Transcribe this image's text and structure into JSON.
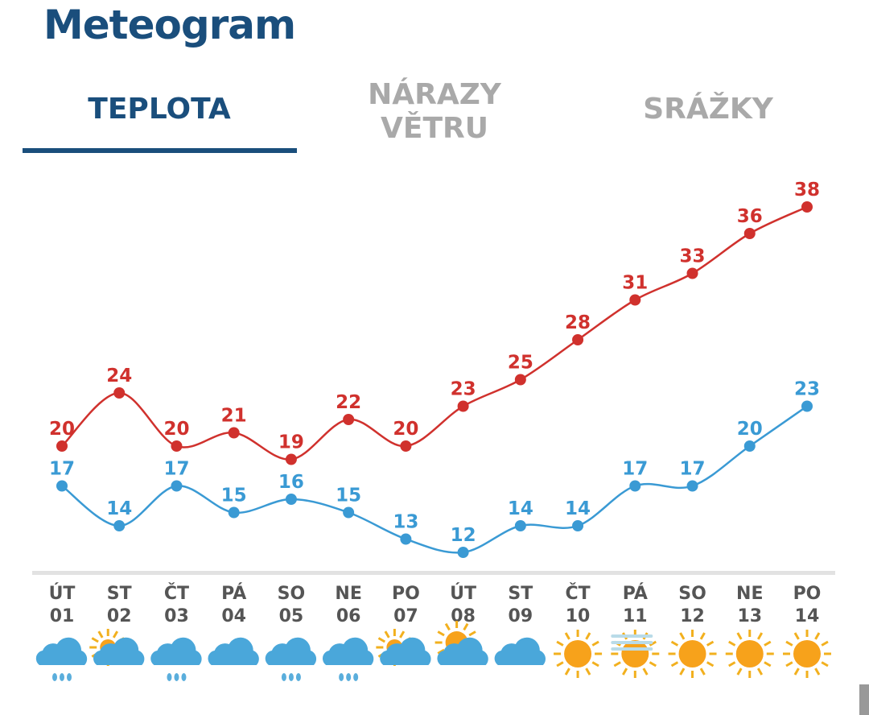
{
  "title": "Meteogram",
  "tabs": [
    {
      "label": "TEPLOTA",
      "active": true
    },
    {
      "label": "NÁRAZY VĚTRU",
      "active": false
    },
    {
      "label": "SRÁŽKY",
      "active": false
    }
  ],
  "colors": {
    "max": "#d0312d",
    "min": "#3a9ad4",
    "accent": "#1a4e7c"
  },
  "chart_data": {
    "type": "line",
    "categories": [
      [
        "ÚT",
        "01"
      ],
      [
        "ST",
        "02"
      ],
      [
        "ČT",
        "03"
      ],
      [
        "PÁ",
        "04"
      ],
      [
        "SO",
        "05"
      ],
      [
        "NE",
        "06"
      ],
      [
        "PO",
        "07"
      ],
      [
        "ÚT",
        "08"
      ],
      [
        "ST",
        "09"
      ],
      [
        "ČT",
        "10"
      ],
      [
        "PÁ",
        "11"
      ],
      [
        "SO",
        "12"
      ],
      [
        "NE",
        "13"
      ],
      [
        "PO",
        "14"
      ]
    ],
    "series": [
      {
        "name": "max",
        "values": [
          20,
          24,
          20,
          21,
          19,
          22,
          20,
          23,
          25,
          28,
          31,
          33,
          36,
          38
        ]
      },
      {
        "name": "min",
        "values": [
          17,
          14,
          17,
          15,
          16,
          15,
          13,
          12,
          14,
          14,
          17,
          17,
          20,
          23
        ]
      }
    ],
    "icons": [
      "rain",
      "partly-cloudy",
      "rain",
      "cloudy",
      "rain",
      "rain",
      "partly-cloudy",
      "partly-sunny",
      "cloudy",
      "sunny",
      "fog-sunny",
      "sunny",
      "sunny",
      "sunny"
    ]
  }
}
